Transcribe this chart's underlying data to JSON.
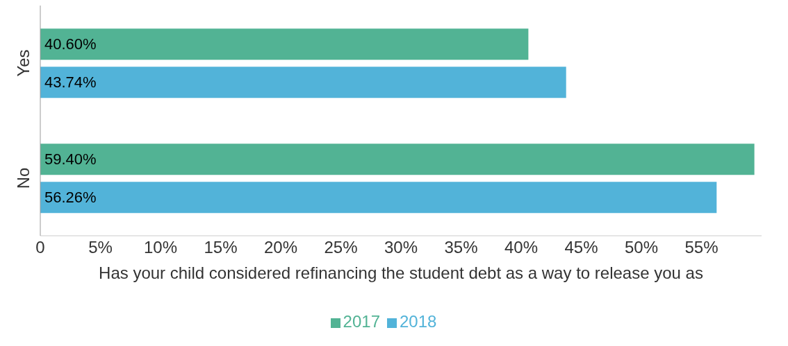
{
  "chart_data": {
    "type": "bar",
    "orientation": "horizontal",
    "categories": [
      "Yes",
      "No"
    ],
    "xlabel": "Has your child considered refinancing the student debt as a way to release you as",
    "series": [
      {
        "name": "2017",
        "color": "#52b394",
        "values": [
          40.6,
          59.4
        ],
        "value_labels": [
          "40.60%",
          "59.40%"
        ]
      },
      {
        "name": "2018",
        "color": "#52b3d9",
        "values": [
          43.74,
          56.26
        ],
        "value_labels": [
          "43.74%",
          "56.26%"
        ]
      }
    ],
    "xlim": [
      0,
      60
    ],
    "xticks": [
      0,
      {
        "value": 5,
        "label": "5%"
      },
      {
        "value": 10,
        "label": "10%"
      },
      {
        "value": 15,
        "label": "15%"
      },
      {
        "value": 20,
        "label": "20%"
      },
      {
        "value": 25,
        "label": "25%"
      },
      {
        "value": 30,
        "label": "30%"
      },
      {
        "value": 35,
        "label": "35%"
      },
      {
        "value": 40,
        "label": "40%"
      },
      {
        "value": 45,
        "label": "45%"
      },
      {
        "value": 50,
        "label": "50%"
      },
      {
        "value": 55,
        "label": "55%"
      }
    ],
    "grid": false,
    "legend": "bottom"
  }
}
